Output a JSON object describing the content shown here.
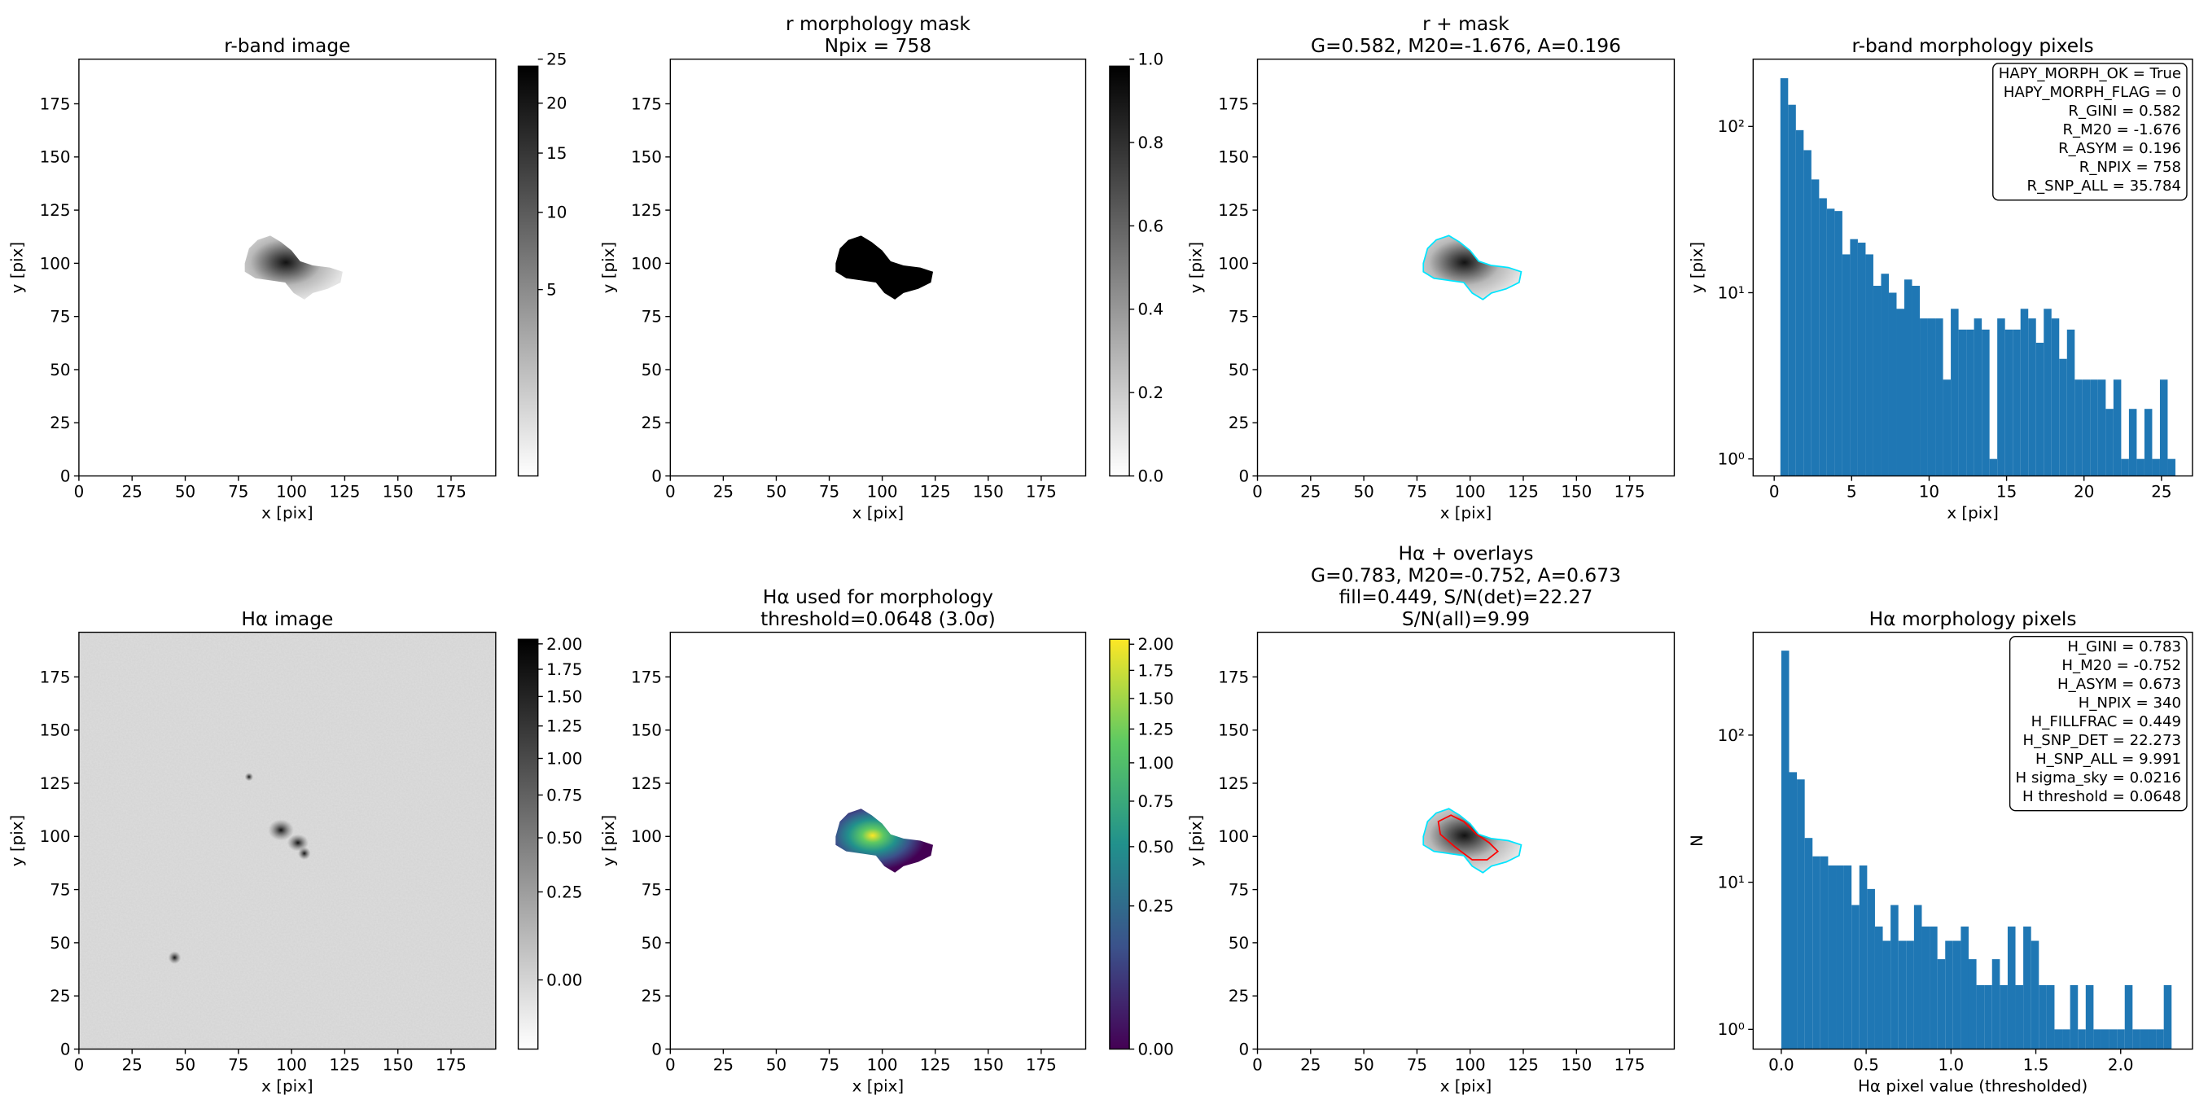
{
  "chart_data": [
    {
      "type": "image",
      "title": [
        "r-band image"
      ],
      "xlabel": "x [pix]",
      "ylabel": "y [pix]",
      "xlim": [
        0,
        196
      ],
      "ylim": [
        0,
        196
      ],
      "xticks": [
        0,
        25,
        50,
        75,
        100,
        125,
        150,
        175
      ],
      "yticks": [
        0,
        25,
        50,
        75,
        100,
        125,
        150,
        175
      ],
      "colorbar": {
        "cmap": "gray_r",
        "stretch": "sqrt",
        "lim": [
          0,
          25
        ],
        "ticks": [
          5,
          10,
          15,
          20,
          25
        ]
      }
    },
    {
      "type": "image",
      "title": [
        "r morphology mask",
        "Npix = 758"
      ],
      "xlabel": "x [pix]",
      "ylabel": "y [pix]",
      "xlim": [
        0,
        196
      ],
      "ylim": [
        0,
        196
      ],
      "xticks": [
        0,
        25,
        50,
        75,
        100,
        125,
        150,
        175
      ],
      "yticks": [
        0,
        25,
        50,
        75,
        100,
        125,
        150,
        175
      ],
      "colorbar": {
        "cmap": "gray_r",
        "stretch": "linear",
        "lim": [
          0,
          1
        ],
        "ticks": [
          {
            "value": 0,
            "label": "0.0"
          },
          0.2,
          0.4,
          0.6,
          0.8,
          {
            "value": 1,
            "label": "1.0"
          }
        ]
      }
    },
    {
      "type": "image",
      "title": [
        "r + mask",
        "G=0.582, M20=-1.676, A=0.196"
      ],
      "xlabel": "x [pix]",
      "ylabel": "y [pix]",
      "xlim": [
        0,
        196
      ],
      "ylim": [
        0,
        196
      ],
      "xticks": [
        0,
        25,
        50,
        75,
        100,
        125,
        150,
        175
      ],
      "yticks": [
        0,
        25,
        50,
        75,
        100,
        125,
        150,
        175
      ]
    },
    {
      "type": "histogram",
      "title": [
        "r-band morphology pixels"
      ],
      "xlabel": "x [pix]",
      "ylabel": "y [pix]",
      "color": "#1f77b4",
      "log_y": true,
      "bins": [
        0.4,
        0.9,
        1.4,
        1.9,
        2.4,
        2.9,
        3.4,
        3.9,
        4.4,
        4.9,
        5.4,
        5.9,
        6.4,
        6.9,
        7.4,
        7.9,
        8.4,
        8.9,
        9.4,
        9.9,
        10.4,
        10.9,
        11.4,
        11.9,
        12.4,
        12.9,
        13.4,
        13.9,
        14.4,
        14.9,
        15.4,
        15.9,
        16.4,
        16.9,
        17.4,
        17.9,
        18.4,
        18.9,
        19.4,
        19.9,
        20.4,
        20.9,
        21.4,
        21.9,
        22.4,
        22.9,
        23.4,
        23.9,
        24.4,
        24.9,
        25.4,
        25.9
      ],
      "counts": [
        195,
        135,
        95,
        72,
        48,
        37,
        32,
        31,
        17,
        21,
        20,
        17,
        11,
        13,
        10,
        8,
        12,
        11,
        7,
        7,
        7,
        3,
        8,
        6,
        6,
        7,
        6,
        1,
        7,
        6,
        6,
        8,
        7,
        5,
        8,
        7,
        4,
        6,
        3,
        3,
        3,
        3,
        2,
        3,
        1,
        2,
        1,
        2,
        1,
        3,
        1
      ],
      "xlim": [
        -1.36,
        27
      ],
      "ylim": [
        0.79,
        254
      ],
      "xticks": [
        0,
        5,
        10,
        15,
        20,
        25
      ],
      "yticks": [
        {
          "value": 1,
          "label": "10⁰"
        },
        {
          "value": 10,
          "label": "10¹"
        },
        {
          "value": 100,
          "label": "10²"
        }
      ],
      "annotation": [
        "HAPY_MORPH_OK = True",
        "HAPY_MORPH_FLAG = 0",
        "R_GINI = 0.582",
        "R_M20 = -1.676",
        "R_ASYM = 0.196",
        "R_NPIX = 758",
        "R_SNP_ALL = 35.784"
      ]
    },
    {
      "type": "image",
      "title": [
        "Hα image"
      ],
      "xlabel": "x [pix]",
      "ylabel": "y [pix]",
      "xlim": [
        0,
        196
      ],
      "ylim": [
        0,
        196
      ],
      "xticks": [
        0,
        25,
        50,
        75,
        100,
        125,
        150,
        175
      ],
      "yticks": [
        0,
        25,
        50,
        75,
        100,
        125,
        150,
        175
      ],
      "colorbar": {
        "cmap": "gray_r",
        "stretch": "sqrt",
        "lim": [
          -0.06,
          2.12
        ],
        "ticks": [
          {
            "value": 0,
            "label": "0.00"
          },
          0.25,
          {
            "value": 0.5,
            "label": "0.50"
          },
          0.75,
          {
            "value": 1,
            "label": "1.00"
          },
          1.25,
          {
            "value": 1.5,
            "label": "1.50"
          },
          1.75,
          {
            "value": 2,
            "label": "2.00"
          }
        ]
      }
    },
    {
      "type": "image",
      "title": [
        "Hα used for morphology",
        "threshold=0.0648 (3.0σ)"
      ],
      "xlabel": "x [pix]",
      "ylabel": "y [pix]",
      "xlim": [
        0,
        196
      ],
      "ylim": [
        0,
        196
      ],
      "xticks": [
        0,
        25,
        50,
        75,
        100,
        125,
        150,
        175
      ],
      "yticks": [
        0,
        25,
        50,
        75,
        100,
        125,
        150,
        175
      ],
      "colorbar": {
        "cmap": "viridis",
        "stretch": "sqrt",
        "lim": [
          0,
          2.12
        ],
        "ticks": [
          {
            "value": 0,
            "label": "0.00"
          },
          0.25,
          {
            "value": 0.5,
            "label": "0.50"
          },
          0.75,
          {
            "value": 1,
            "label": "1.00"
          },
          1.25,
          {
            "value": 1.5,
            "label": "1.50"
          },
          1.75,
          {
            "value": 2,
            "label": "2.00"
          }
        ]
      }
    },
    {
      "type": "image",
      "title": [
        "Hα + overlays",
        "G=0.783, M20=-0.752, A=0.673",
        "fill=0.449, S/N(det)=22.27",
        "S/N(all)=9.99"
      ],
      "xlabel": "x [pix]",
      "ylabel": "y [pix]",
      "xlim": [
        0,
        196
      ],
      "ylim": [
        0,
        196
      ],
      "xticks": [
        0,
        25,
        50,
        75,
        100,
        125,
        150,
        175
      ],
      "yticks": [
        0,
        25,
        50,
        75,
        100,
        125,
        150,
        175
      ]
    },
    {
      "type": "histogram",
      "title": [
        "Hα morphology pixels"
      ],
      "xlabel": "Hα pixel value (thresholded)",
      "ylabel": "N",
      "color": "#1f77b4",
      "log_y": true,
      "bins": [
        0,
        0.046,
        0.092,
        0.138,
        0.184,
        0.23,
        0.276,
        0.322,
        0.368,
        0.414,
        0.46,
        0.506,
        0.552,
        0.598,
        0.644,
        0.69,
        0.736,
        0.782,
        0.828,
        0.874,
        0.92,
        0.966,
        1.012,
        1.058,
        1.104,
        1.15,
        1.196,
        1.242,
        1.288,
        1.334,
        1.38,
        1.426,
        1.472,
        1.518,
        1.564,
        1.61,
        1.656,
        1.702,
        1.748,
        1.794,
        1.84,
        1.886,
        1.932,
        1.978,
        2.024,
        2.07,
        2.116,
        2.162,
        2.208,
        2.254,
        2.3
      ],
      "counts": [
        375,
        56,
        50,
        20,
        15,
        15,
        13,
        13,
        13,
        7,
        13,
        9,
        5,
        4,
        7,
        4,
        4,
        7,
        5,
        5,
        3,
        4,
        4,
        5,
        3,
        2,
        2,
        3,
        2,
        5,
        2,
        5,
        4,
        2,
        2,
        1,
        1,
        2,
        1,
        2,
        1,
        1,
        1,
        1,
        2,
        1,
        1,
        1,
        1,
        2
      ],
      "xlim": [
        -0.166,
        2.423
      ],
      "ylim": [
        0.735,
        500
      ],
      "xticks": [
        {
          "value": 0,
          "label": "0.0"
        },
        0.5,
        {
          "value": 1,
          "label": "1.0"
        },
        1.5,
        {
          "value": 2,
          "label": "2.0"
        }
      ],
      "yticks": [
        {
          "value": 1,
          "label": "10⁰"
        },
        {
          "value": 10,
          "label": "10¹"
        },
        {
          "value": 100,
          "label": "10²"
        }
      ],
      "annotation": [
        "H_GINI = 0.783",
        "H_M20 = -0.752",
        "H_ASYM = 0.673",
        "H_NPIX = 340",
        "H_FILLFRAC = 0.449",
        "H_SNP_DET = 22.273",
        "H_SNP_ALL = 9.991",
        "H sigma_sky = 0.0216",
        "H threshold = 0.0648"
      ]
    }
  ]
}
